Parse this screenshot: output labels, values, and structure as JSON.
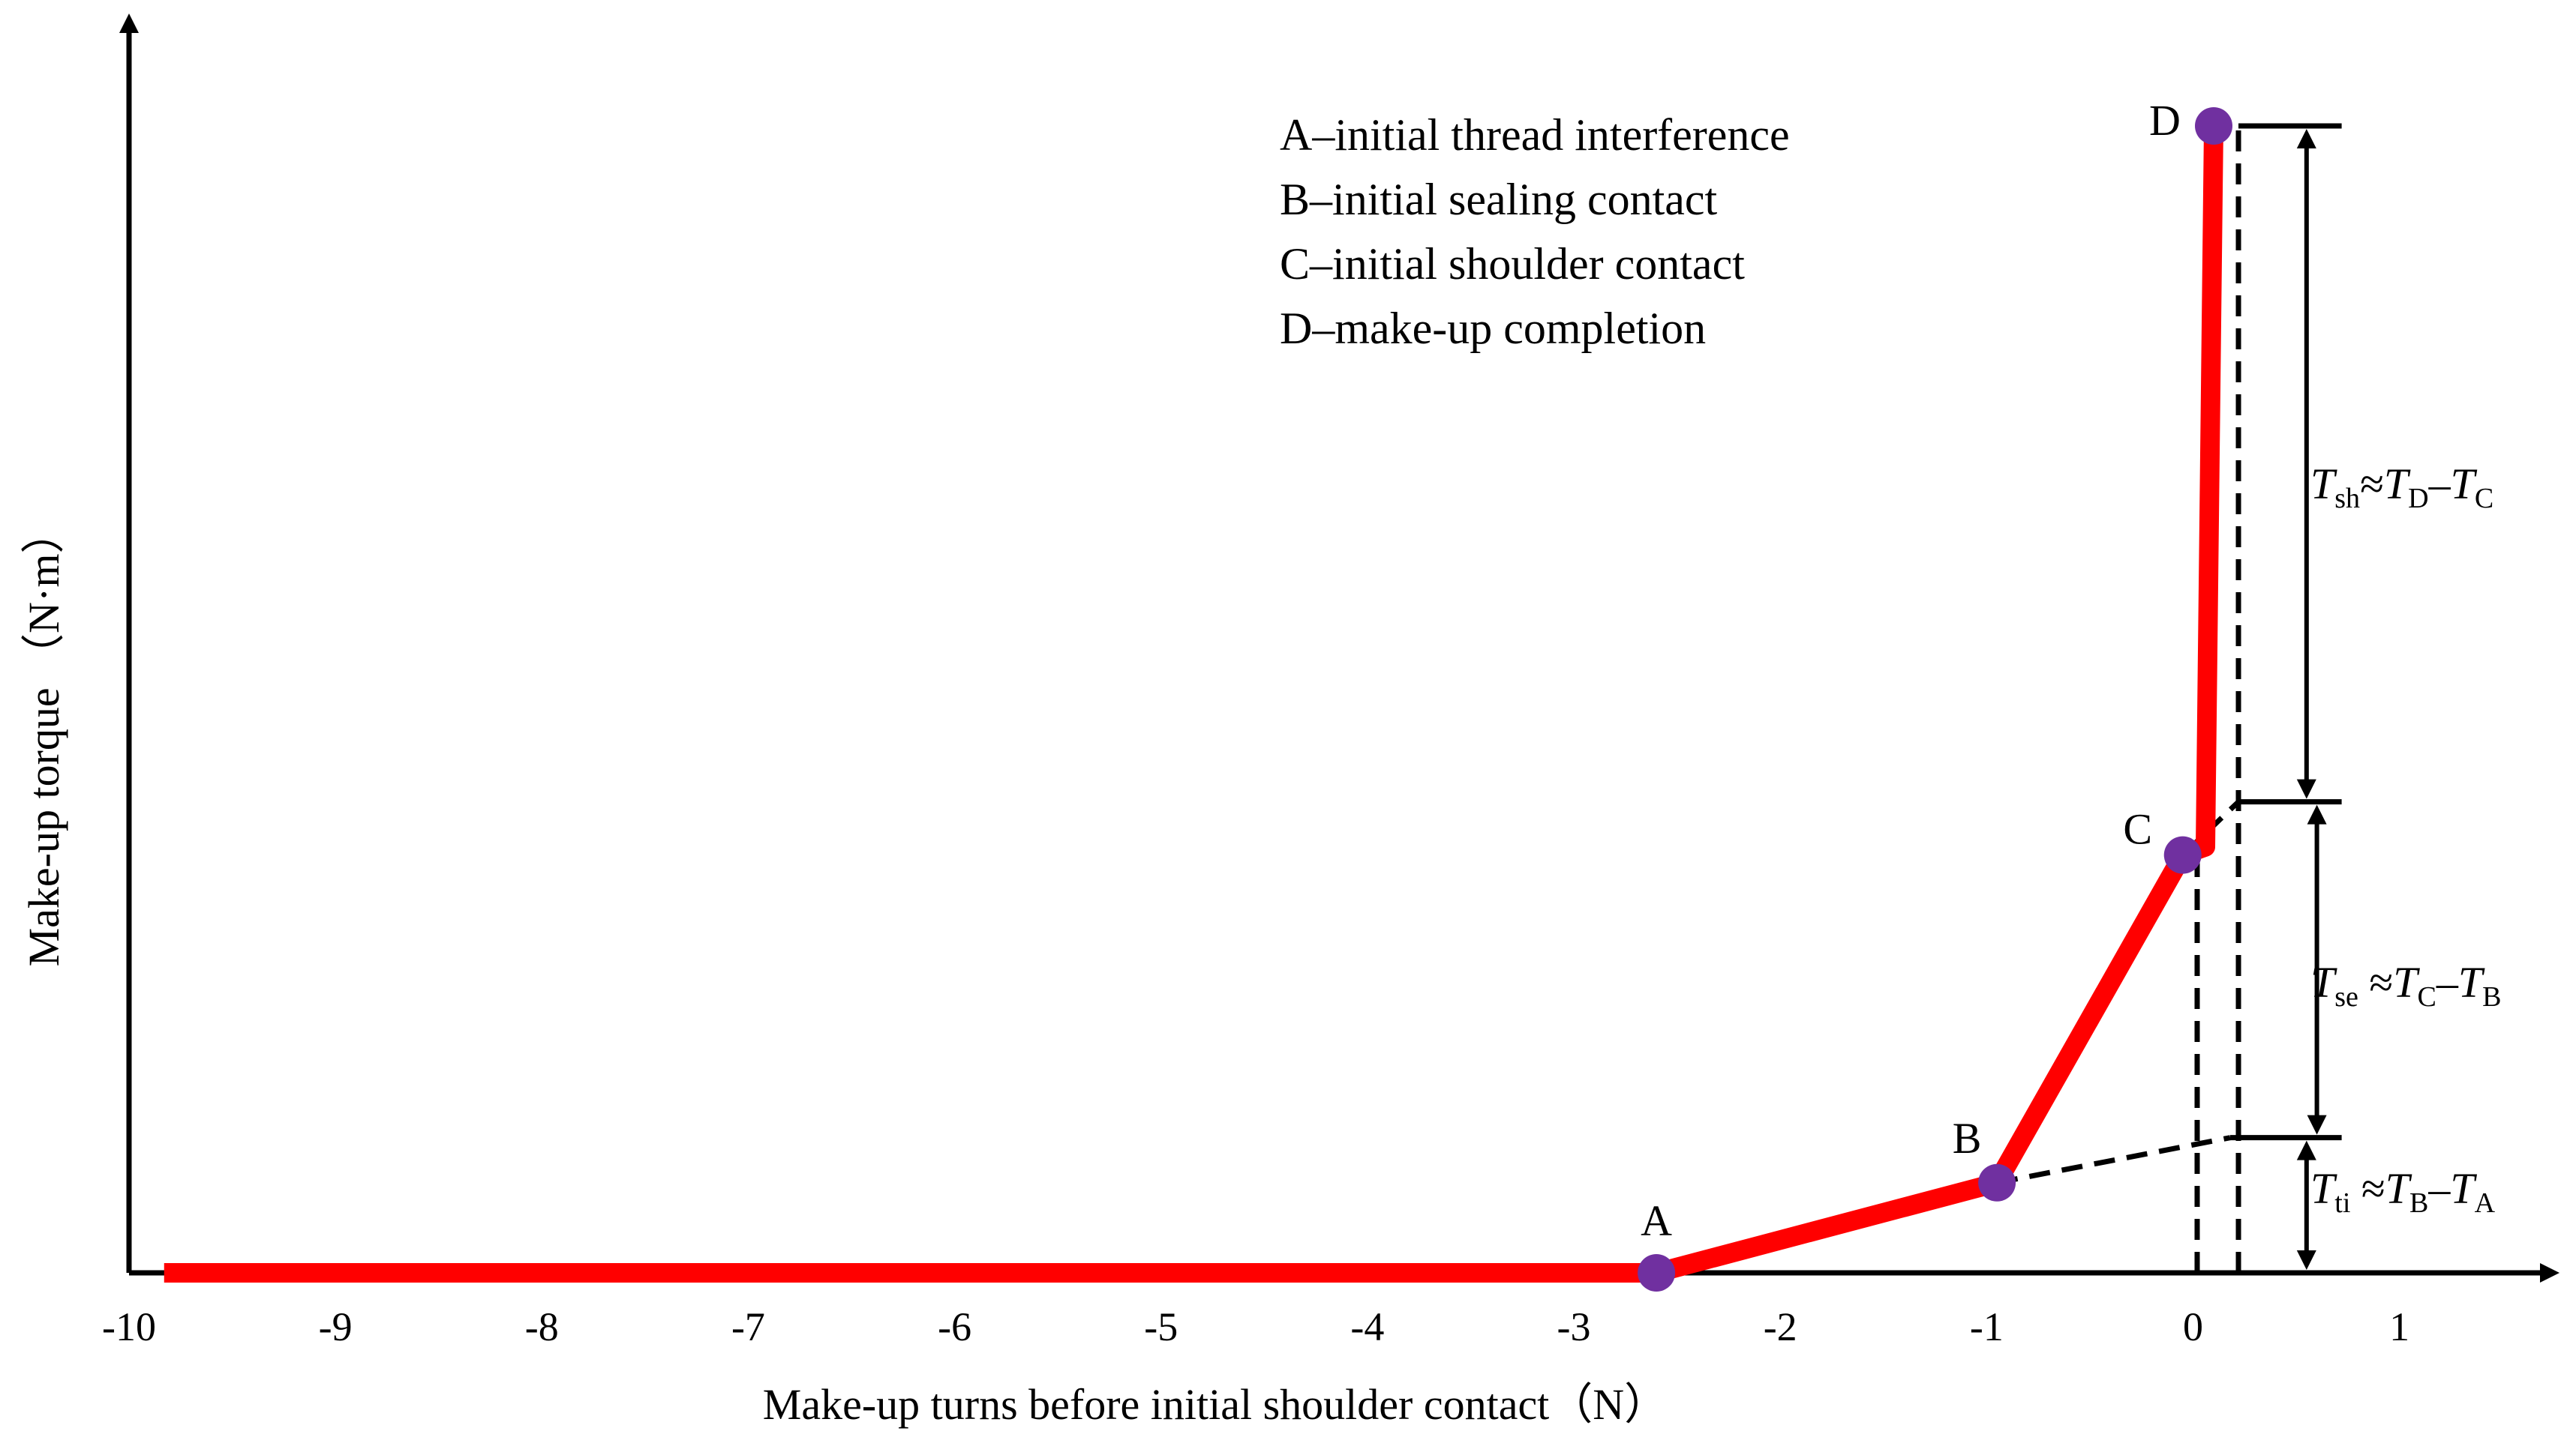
{
  "chart_data": {
    "type": "line",
    "xlabel": "Make-up turns before initial shoulder contact（N）",
    "ylabel": "Make-up torque （N·m）",
    "xlim": [
      -10,
      1.75
    ],
    "ylim": [
      0,
      14
    ],
    "x_ticks": [
      "-10",
      "-9",
      "-8",
      "-7",
      "-6",
      "-5",
      "-4",
      "-3",
      "-2",
      "-1",
      "0",
      "1"
    ],
    "grid": false,
    "colors": {
      "curve": "#ff0000",
      "marker": "#7030a0",
      "axis": "#000000"
    },
    "series": [
      {
        "x": [
          -9.83,
          -2.6,
          -0.95,
          -0.05,
          0.06,
          0.1
        ],
        "y": [
          0,
          0,
          1.1,
          5.1,
          5.2,
          14
        ]
      }
    ],
    "points": [
      {
        "label": "A",
        "x": -2.6,
        "y": 0
      },
      {
        "label": "B",
        "x": -0.95,
        "y": 1.1
      },
      {
        "label": "C",
        "x": -0.05,
        "y": 5.1
      },
      {
        "label": "D",
        "x": 0.1,
        "y": 14
      }
    ],
    "legend": [
      "A–initial thread interference",
      "B–initial sealing contact",
      "C–initial shoulder contact",
      "D–make-up completion"
    ],
    "annotations": [
      {
        "italic": "T",
        "sub": "sh",
        "rest": "≈",
        "t1": "T",
        "s1": "D",
        "minus": "–",
        "t2": "T",
        "s2": "C"
      },
      {
        "italic": "T",
        "sub": "se",
        "rest": " ≈",
        "t1": "T",
        "s1": "C",
        "minus": "–",
        "t2": "T",
        "s2": "B"
      },
      {
        "italic": "T",
        "sub": "ti",
        "rest": " ≈",
        "t1": "T",
        "s1": "B",
        "minus": "–",
        "t2": "T",
        "s2": "A"
      }
    ],
    "extension_lines": [
      {
        "x": [
          -2.6,
          0.7
        ],
        "y": [
          0,
          0
        ]
      },
      {
        "x": [
          -0.95,
          0.18
        ],
        "y": [
          1.1,
          1.65
        ]
      },
      {
        "x": [
          -0.05,
          0.22
        ],
        "y": [
          5.1,
          5.75
        ]
      },
      {
        "x": [
          0.02,
          0.02
        ],
        "y": [
          0,
          5.1
        ]
      },
      {
        "x": [
          0.22,
          0.22
        ],
        "y": [
          0,
          14
        ]
      }
    ],
    "levels": {
      "A": 0,
      "B": 1.65,
      "C": 5.75,
      "D": 14
    }
  }
}
